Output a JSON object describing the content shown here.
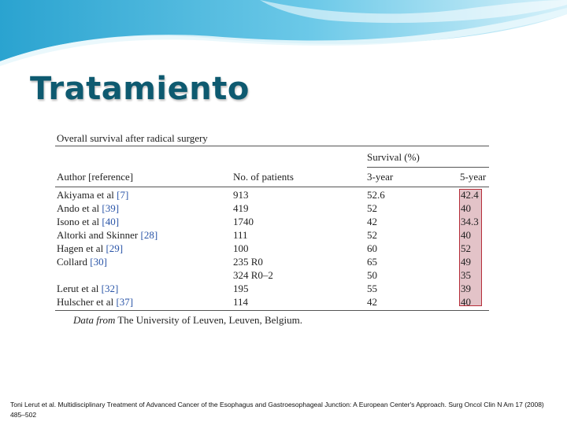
{
  "slide": {
    "title": "Tratamiento",
    "citation": "Toni Lerut et al. Multidisciplinary Treatment of Advanced Cancer of the Esophagus and Gastroesophageal Junction: A European Center's Approach. Surg Oncol Clin N Am 17 (2008) 485–502"
  },
  "table": {
    "caption": "Overall survival after radical surgery",
    "group_header": "Survival (%)",
    "columns": {
      "author": "Author [reference]",
      "patients": "No. of patients",
      "three_year": "3-year",
      "five_year": "5-year"
    },
    "rows": [
      {
        "author": "Akiyama et al",
        "ref": "[7]",
        "patients": "913",
        "three_year": "52.6",
        "five_year": "42.4"
      },
      {
        "author": "Ando et al",
        "ref": "[39]",
        "patients": "419",
        "three_year": "52",
        "five_year": "40"
      },
      {
        "author": "Isono et al",
        "ref": "[40]",
        "patients": "1740",
        "three_year": "42",
        "five_year": "34.3"
      },
      {
        "author": "Altorki and Skinner",
        "ref": "[28]",
        "patients": "111",
        "three_year": "52",
        "five_year": "40"
      },
      {
        "author": "Hagen et al",
        "ref": "[29]",
        "patients": "100",
        "three_year": "60",
        "five_year": "52"
      },
      {
        "author": "Collard",
        "ref": "[30]",
        "patients": "235 R0",
        "three_year": "65",
        "five_year": "49"
      },
      {
        "author": "",
        "ref": "",
        "patients": "324 R0–2",
        "three_year": "50",
        "five_year": "35"
      },
      {
        "author": "Lerut et al",
        "ref": "[32]",
        "patients": "195",
        "three_year": "55",
        "five_year": "39"
      },
      {
        "author": "Hulscher et al",
        "ref": "[37]",
        "patients": "114",
        "three_year": "42",
        "five_year": "40"
      }
    ],
    "footnote_prefix": "Data from",
    "footnote_text": "The University of Leuven, Leuven, Belgium.",
    "highlight_color": "#b62f3a"
  },
  "colors": {
    "title": "#0e5a70",
    "wave_dark": "#1f8fbf",
    "wave_light": "#bfe9f5"
  }
}
